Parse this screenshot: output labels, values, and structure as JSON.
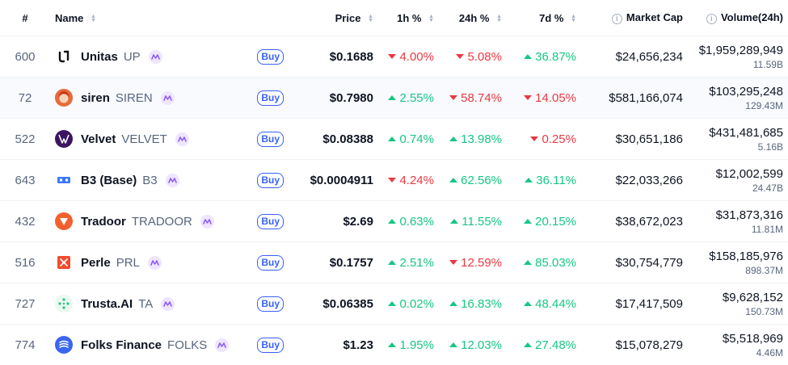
{
  "headers": {
    "rank": "#",
    "name": "Name",
    "price": "Price",
    "h1": "1h %",
    "h24": "24h %",
    "d7": "7d %",
    "market_cap": "Market Cap",
    "volume": "Volume(24h)"
  },
  "buy_label": "Buy",
  "colors": {
    "up": "#16c784",
    "down": "#ea3943",
    "accent": "#3861fb"
  },
  "rows": [
    {
      "rank": "600",
      "name": "Unitas",
      "symbol": "UP",
      "logo": "unitas-logo",
      "price": "$0.1688",
      "h1": "4.00%",
      "h1_dir": "down",
      "h24": "5.08%",
      "h24_dir": "down",
      "d7": "36.87%",
      "d7_dir": "up",
      "market_cap": "$24,656,234",
      "volume": "$1,959,289,949",
      "volume_sub": "11.59B"
    },
    {
      "rank": "72",
      "name": "siren",
      "symbol": "SIREN",
      "logo": "siren-logo",
      "price": "$0.7980",
      "h1": "2.55%",
      "h1_dir": "up",
      "h24": "58.74%",
      "h24_dir": "down",
      "d7": "14.05%",
      "d7_dir": "down",
      "market_cap": "$581,166,074",
      "volume": "$103,295,248",
      "volume_sub": "129.43M"
    },
    {
      "rank": "522",
      "name": "Velvet",
      "symbol": "VELVET",
      "logo": "velvet-logo",
      "price": "$0.08388",
      "h1": "0.74%",
      "h1_dir": "up",
      "h24": "13.98%",
      "h24_dir": "up",
      "d7": "0.25%",
      "d7_dir": "down",
      "market_cap": "$30,651,186",
      "volume": "$431,481,685",
      "volume_sub": "5.16B"
    },
    {
      "rank": "643",
      "name": "B3 (Base)",
      "symbol": "B3",
      "logo": "b3-logo",
      "price": "$0.0004911",
      "h1": "4.24%",
      "h1_dir": "down",
      "h24": "62.56%",
      "h24_dir": "up",
      "d7": "36.11%",
      "d7_dir": "up",
      "market_cap": "$22,033,266",
      "volume": "$12,002,599",
      "volume_sub": "24.47B"
    },
    {
      "rank": "432",
      "name": "Tradoor",
      "symbol": "TRADOOR",
      "logo": "tradoor-logo",
      "price": "$2.69",
      "h1": "0.63%",
      "h1_dir": "up",
      "h24": "11.55%",
      "h24_dir": "up",
      "d7": "20.15%",
      "d7_dir": "up",
      "market_cap": "$38,672,023",
      "volume": "$31,873,316",
      "volume_sub": "11.81M"
    },
    {
      "rank": "516",
      "name": "Perle",
      "symbol": "PRL",
      "logo": "perle-logo",
      "price": "$0.1757",
      "h1": "2.51%",
      "h1_dir": "up",
      "h24": "12.59%",
      "h24_dir": "down",
      "d7": "85.03%",
      "d7_dir": "up",
      "market_cap": "$30,754,779",
      "volume": "$158,185,976",
      "volume_sub": "898.37M"
    },
    {
      "rank": "727",
      "name": "Trusta.AI",
      "symbol": "TA",
      "logo": "trusta-logo",
      "price": "$0.06385",
      "h1": "0.02%",
      "h1_dir": "up",
      "h24": "16.83%",
      "h24_dir": "up",
      "d7": "48.44%",
      "d7_dir": "up",
      "market_cap": "$17,417,509",
      "volume": "$9,628,152",
      "volume_sub": "150.73M"
    },
    {
      "rank": "774",
      "name": "Folks Finance",
      "symbol": "FOLKS",
      "logo": "folks-logo",
      "price": "$1.23",
      "h1": "1.95%",
      "h1_dir": "up",
      "h24": "12.03%",
      "h24_dir": "up",
      "d7": "27.48%",
      "d7_dir": "up",
      "market_cap": "$15,078,279",
      "volume": "$5,518,969",
      "volume_sub": "4.46M"
    }
  ]
}
